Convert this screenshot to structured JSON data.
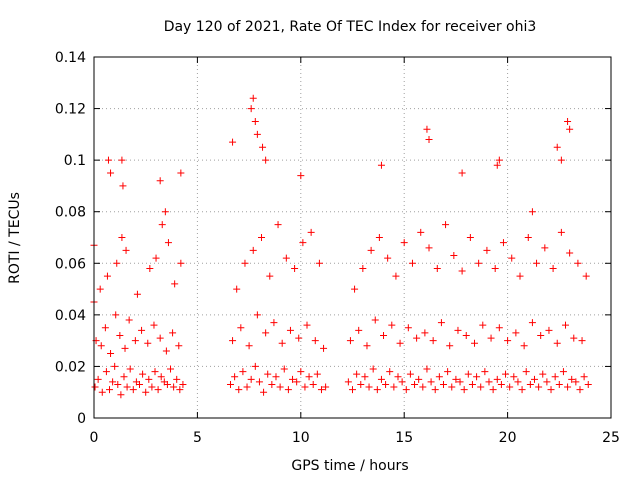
{
  "chart_data": {
    "type": "scatter",
    "title": "Day 120 of 2021, Rate Of TEC Index for receiver ohi3",
    "xlabel": "GPS time / hours",
    "ylabel": "ROTI / TECUs",
    "xlim": [
      0,
      25
    ],
    "ylim": [
      0,
      0.14
    ],
    "xticks": [
      0,
      5,
      10,
      15,
      20,
      25
    ],
    "xtick_labels": [
      "0",
      "5",
      "10",
      "15",
      "20",
      "25"
    ],
    "yticks": [
      0,
      0.02,
      0.04,
      0.06,
      0.08,
      0.1,
      0.12,
      0.14
    ],
    "ytick_labels": [
      "0",
      "0.02",
      "0.04",
      "0.06",
      "0.08",
      "0.1",
      "0.12",
      "0.14"
    ],
    "grid": true,
    "marker": "+",
    "color": "#ff0000",
    "series": [
      {
        "x": [
          0.05,
          0.2,
          0.4,
          0.6,
          0.75,
          0.9,
          1.0,
          1.15,
          1.3,
          1.45,
          1.6,
          1.75,
          1.9,
          2.05,
          2.2,
          2.35,
          2.5,
          2.65,
          2.8,
          2.95,
          3.1,
          3.25,
          3.4,
          3.55,
          3.7,
          3.85,
          4.0,
          4.15,
          4.3,
          0.1,
          0.35,
          0.55,
          0.8,
          1.05,
          1.25,
          1.5,
          1.7,
          2.0,
          2.3,
          2.6,
          2.9,
          3.2,
          3.5,
          3.8,
          4.1,
          0.0,
          0.3,
          0.65,
          1.1,
          1.35,
          1.55,
          2.1,
          2.7,
          3.0,
          3.3,
          3.6,
          3.9,
          4.2,
          0.7,
          0.8,
          1.35,
          1.4,
          3.2,
          3.45,
          4.2,
          0.0,
          6.6,
          6.8,
          7.0,
          7.2,
          7.4,
          7.6,
          7.8,
          8.0,
          8.2,
          8.4,
          8.6,
          8.8,
          9.0,
          9.2,
          9.4,
          9.6,
          9.8,
          10.0,
          10.2,
          10.4,
          10.6,
          10.8,
          11.0,
          11.2,
          6.7,
          7.1,
          7.5,
          7.9,
          8.3,
          8.7,
          9.1,
          9.5,
          9.9,
          10.3,
          10.7,
          11.1,
          6.9,
          7.3,
          7.7,
          8.1,
          8.5,
          8.9,
          9.3,
          9.7,
          10.1,
          10.5,
          10.9,
          7.6,
          7.7,
          7.8,
          7.9,
          8.15,
          6.7,
          8.3,
          10.0,
          12.3,
          12.5,
          12.7,
          12.9,
          13.1,
          13.3,
          13.5,
          13.7,
          13.9,
          14.1,
          14.3,
          14.5,
          14.7,
          14.9,
          15.1,
          15.3,
          15.5,
          15.7,
          15.9,
          16.1,
          16.3,
          16.5,
          16.7,
          16.9,
          17.1,
          17.3,
          17.5,
          17.7,
          17.9,
          18.1,
          18.3,
          18.5,
          18.7,
          18.9,
          19.1,
          19.3,
          19.5,
          19.7,
          19.9,
          20.1,
          20.3,
          20.5,
          20.7,
          20.9,
          21.1,
          21.3,
          21.5,
          21.7,
          21.9,
          22.1,
          22.3,
          22.5,
          22.7,
          22.9,
          23.1,
          23.3,
          23.5,
          23.7,
          23.9,
          12.4,
          12.8,
          13.2,
          13.6,
          14.0,
          14.4,
          14.8,
          15.2,
          15.6,
          16.0,
          16.4,
          16.8,
          17.2,
          17.6,
          18.0,
          18.4,
          18.8,
          19.2,
          19.6,
          20.0,
          20.4,
          20.8,
          21.2,
          21.6,
          22.0,
          22.4,
          22.8,
          23.2,
          23.6,
          12.6,
          13.0,
          13.4,
          13.8,
          14.2,
          14.6,
          15.0,
          15.4,
          15.8,
          16.2,
          16.6,
          17.0,
          17.4,
          17.8,
          18.2,
          18.6,
          19.0,
          19.4,
          19.8,
          20.2,
          20.6,
          21.0,
          21.4,
          21.8,
          22.2,
          22.6,
          23.0,
          23.4,
          23.8,
          16.1,
          16.2,
          19.5,
          19.6,
          22.4,
          22.6,
          22.9,
          23.0,
          13.9,
          17.8,
          21.2
        ],
        "y": [
          0.012,
          0.015,
          0.01,
          0.018,
          0.011,
          0.014,
          0.02,
          0.013,
          0.009,
          0.016,
          0.012,
          0.019,
          0.011,
          0.014,
          0.013,
          0.017,
          0.01,
          0.015,
          0.012,
          0.018,
          0.011,
          0.016,
          0.014,
          0.013,
          0.019,
          0.012,
          0.015,
          0.011,
          0.013,
          0.03,
          0.028,
          0.035,
          0.025,
          0.04,
          0.032,
          0.027,
          0.038,
          0.03,
          0.034,
          0.029,
          0.036,
          0.031,
          0.026,
          0.033,
          0.028,
          0.045,
          0.05,
          0.055,
          0.06,
          0.07,
          0.065,
          0.048,
          0.058,
          0.062,
          0.075,
          0.068,
          0.052,
          0.06,
          0.1,
          0.095,
          0.1,
          0.09,
          0.092,
          0.08,
          0.095,
          0.067,
          0.013,
          0.016,
          0.011,
          0.018,
          0.012,
          0.015,
          0.02,
          0.014,
          0.01,
          0.017,
          0.013,
          0.016,
          0.012,
          0.019,
          0.011,
          0.015,
          0.014,
          0.018,
          0.012,
          0.016,
          0.013,
          0.017,
          0.011,
          0.012,
          0.03,
          0.035,
          0.028,
          0.04,
          0.033,
          0.037,
          0.029,
          0.034,
          0.031,
          0.036,
          0.03,
          0.027,
          0.05,
          0.06,
          0.065,
          0.07,
          0.055,
          0.075,
          0.062,
          0.058,
          0.068,
          0.072,
          0.06,
          0.12,
          0.124,
          0.115,
          0.11,
          0.105,
          0.107,
          0.1,
          0.094,
          0.014,
          0.011,
          0.017,
          0.013,
          0.016,
          0.012,
          0.019,
          0.011,
          0.015,
          0.013,
          0.018,
          0.012,
          0.016,
          0.014,
          0.011,
          0.017,
          0.013,
          0.015,
          0.012,
          0.019,
          0.014,
          0.011,
          0.016,
          0.013,
          0.018,
          0.012,
          0.015,
          0.014,
          0.011,
          0.017,
          0.013,
          0.016,
          0.012,
          0.018,
          0.014,
          0.011,
          0.015,
          0.013,
          0.017,
          0.012,
          0.016,
          0.014,
          0.011,
          0.018,
          0.013,
          0.015,
          0.012,
          0.017,
          0.014,
          0.011,
          0.016,
          0.013,
          0.018,
          0.012,
          0.015,
          0.014,
          0.011,
          0.016,
          0.013,
          0.03,
          0.034,
          0.028,
          0.038,
          0.032,
          0.036,
          0.029,
          0.035,
          0.031,
          0.033,
          0.03,
          0.037,
          0.028,
          0.034,
          0.032,
          0.029,
          0.036,
          0.031,
          0.035,
          0.03,
          0.033,
          0.028,
          0.037,
          0.032,
          0.034,
          0.029,
          0.036,
          0.031,
          0.03,
          0.05,
          0.058,
          0.065,
          0.07,
          0.062,
          0.055,
          0.068,
          0.06,
          0.072,
          0.066,
          0.058,
          0.075,
          0.063,
          0.057,
          0.07,
          0.06,
          0.065,
          0.058,
          0.068,
          0.062,
          0.055,
          0.07,
          0.06,
          0.066,
          0.058,
          0.072,
          0.064,
          0.06,
          0.055,
          0.112,
          0.108,
          0.098,
          0.1,
          0.105,
          0.1,
          0.115,
          0.112,
          0.098,
          0.095,
          0.08
        ]
      }
    ]
  }
}
